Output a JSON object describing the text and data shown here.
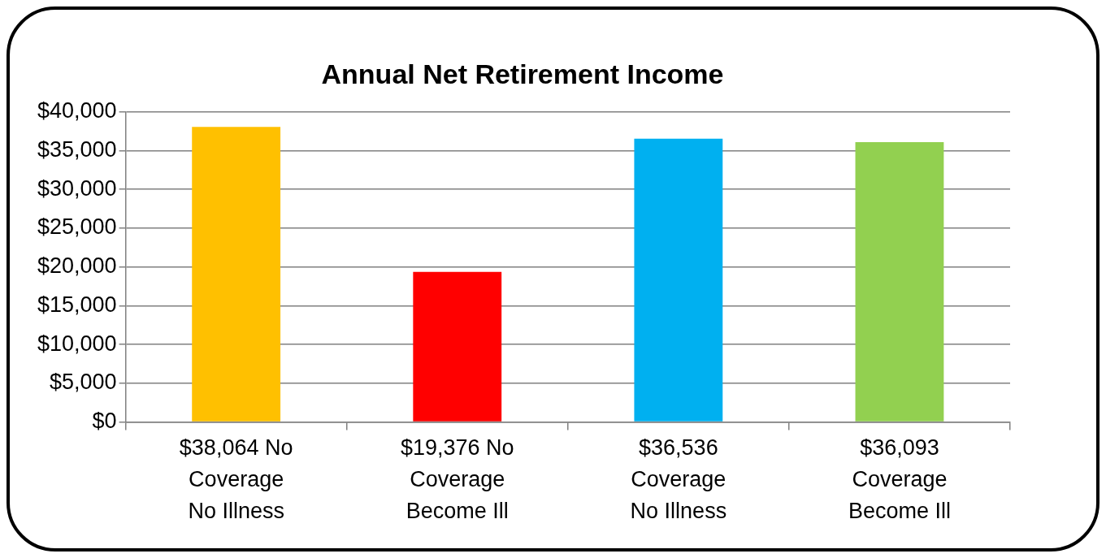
{
  "chart_data": {
    "type": "bar",
    "title": "Annual Net Retirement Income",
    "categories": [
      "$38,064 No Coverage No Illness",
      "$19,376 No Coverage Become Ill",
      "$36,536 Coverage No Illness",
      "$36,093 Coverage Become Ill"
    ],
    "values": [
      38064,
      19376,
      36536,
      36093
    ],
    "colors": [
      "#ffc000",
      "#ff0000",
      "#00b0f0",
      "#92d050"
    ],
    "ylim": [
      0,
      40000
    ],
    "yticks": [
      {
        "value": 0,
        "label": "$0"
      },
      {
        "value": 5000,
        "label": "$5,000"
      },
      {
        "value": 10000,
        "label": "$10,000"
      },
      {
        "value": 15000,
        "label": "$15,000"
      },
      {
        "value": 20000,
        "label": "$20,000"
      },
      {
        "value": 25000,
        "label": "$25,000"
      },
      {
        "value": 30000,
        "label": "$30,000"
      },
      {
        "value": 35000,
        "label": "$35,000"
      },
      {
        "value": 40000,
        "label": "$40,000"
      }
    ],
    "grid": "y",
    "legend": false
  }
}
